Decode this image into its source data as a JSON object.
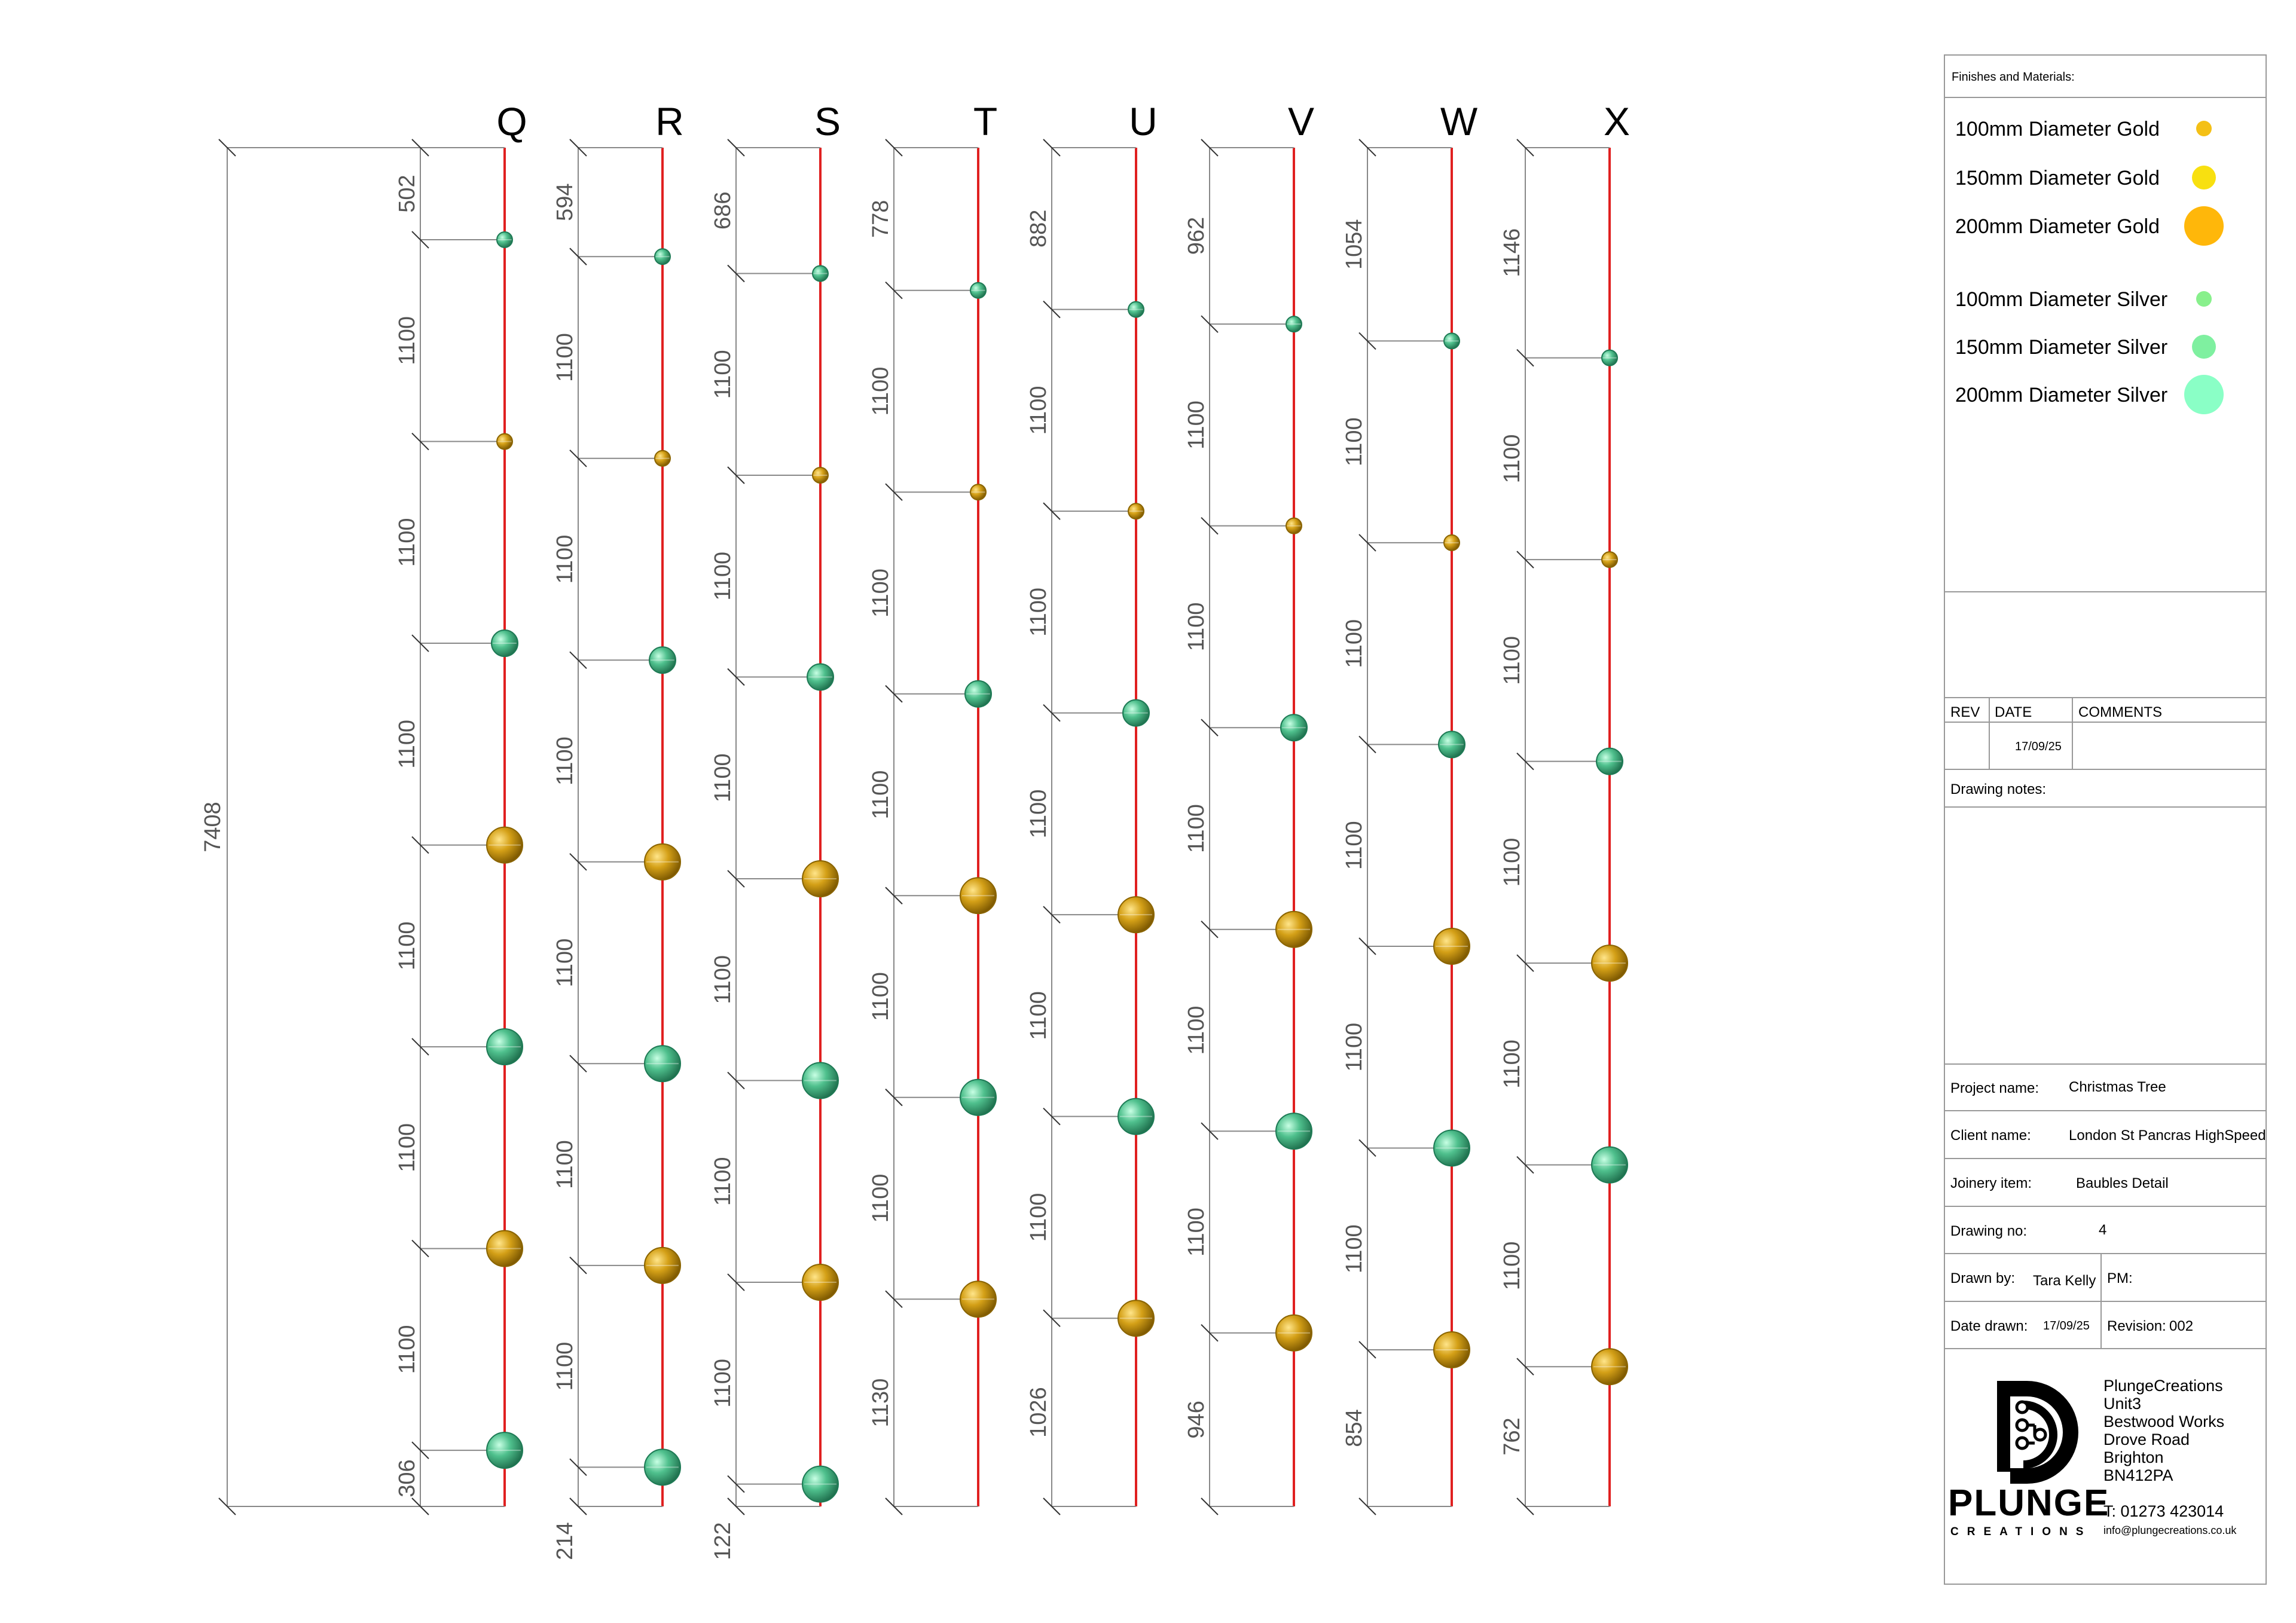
{
  "drawing": {
    "overall_height": "7408",
    "columns": [
      {
        "letter": "Q",
        "top": "502",
        "bottom": "306",
        "bottom_side": "left",
        "spacings": [
          "1100",
          "1100",
          "1100",
          "1100",
          "1100",
          "1100"
        ],
        "baubles": [
          {
            "material": "silver",
            "size": 100
          },
          {
            "material": "gold",
            "size": 100
          },
          {
            "material": "silver",
            "size": 150
          },
          {
            "material": "gold",
            "size": 200
          },
          {
            "material": "silver",
            "size": 200
          },
          {
            "material": "gold",
            "size": 200
          },
          {
            "material": "silver",
            "size": 200
          }
        ]
      },
      {
        "letter": "R",
        "top": "594",
        "bottom": "214",
        "bottom_side": "below",
        "spacings": [
          "1100",
          "1100",
          "1100",
          "1100",
          "1100",
          "1100"
        ],
        "baubles": [
          {
            "material": "silver",
            "size": 100
          },
          {
            "material": "gold",
            "size": 100
          },
          {
            "material": "silver",
            "size": 150
          },
          {
            "material": "gold",
            "size": 200
          },
          {
            "material": "silver",
            "size": 200
          },
          {
            "material": "gold",
            "size": 200
          },
          {
            "material": "silver",
            "size": 200
          }
        ]
      },
      {
        "letter": "S",
        "top": "686",
        "bottom": "122",
        "bottom_side": "below",
        "spacings": [
          "1100",
          "1100",
          "1100",
          "1100",
          "1100",
          "1100"
        ],
        "baubles": [
          {
            "material": "silver",
            "size": 100
          },
          {
            "material": "gold",
            "size": 100
          },
          {
            "material": "silver",
            "size": 150
          },
          {
            "material": "gold",
            "size": 200
          },
          {
            "material": "silver",
            "size": 200
          },
          {
            "material": "gold",
            "size": 200
          },
          {
            "material": "silver",
            "size": 200
          }
        ]
      },
      {
        "letter": "T",
        "top": "778",
        "bottom": "1130",
        "bottom_side": "left",
        "spacings": [
          "1100",
          "1100",
          "1100",
          "1100",
          "1100"
        ],
        "baubles": [
          {
            "material": "silver",
            "size": 100
          },
          {
            "material": "gold",
            "size": 100
          },
          {
            "material": "silver",
            "size": 150
          },
          {
            "material": "gold",
            "size": 200
          },
          {
            "material": "silver",
            "size": 200
          },
          {
            "material": "gold",
            "size": 200
          }
        ]
      },
      {
        "letter": "U",
        "top": "882",
        "bottom": "1026",
        "bottom_side": "left",
        "spacings": [
          "1100",
          "1100",
          "1100",
          "1100",
          "1100"
        ],
        "baubles": [
          {
            "material": "silver",
            "size": 100
          },
          {
            "material": "gold",
            "size": 100
          },
          {
            "material": "silver",
            "size": 150
          },
          {
            "material": "gold",
            "size": 200
          },
          {
            "material": "silver",
            "size": 200
          },
          {
            "material": "gold",
            "size": 200
          }
        ]
      },
      {
        "letter": "V",
        "top": "962",
        "bottom": "946",
        "bottom_side": "left",
        "spacings": [
          "1100",
          "1100",
          "1100",
          "1100",
          "1100"
        ],
        "baubles": [
          {
            "material": "silver",
            "size": 100
          },
          {
            "material": "gold",
            "size": 100
          },
          {
            "material": "silver",
            "size": 150
          },
          {
            "material": "gold",
            "size": 200
          },
          {
            "material": "silver",
            "size": 200
          },
          {
            "material": "gold",
            "size": 200
          }
        ]
      },
      {
        "letter": "W",
        "top": "1054",
        "bottom": "854",
        "bottom_side": "left",
        "spacings": [
          "1100",
          "1100",
          "1100",
          "1100",
          "1100"
        ],
        "baubles": [
          {
            "material": "silver",
            "size": 100
          },
          {
            "material": "gold",
            "size": 100
          },
          {
            "material": "silver",
            "size": 150
          },
          {
            "material": "gold",
            "size": 200
          },
          {
            "material": "silver",
            "size": 200
          },
          {
            "material": "gold",
            "size": 200
          }
        ]
      },
      {
        "letter": "X",
        "top": "1146",
        "bottom": "762",
        "bottom_side": "left",
        "spacings": [
          "1100",
          "1100",
          "1100",
          "1100",
          "1100"
        ],
        "baubles": [
          {
            "material": "silver",
            "size": 100
          },
          {
            "material": "gold",
            "size": 100
          },
          {
            "material": "silver",
            "size": 150
          },
          {
            "material": "gold",
            "size": 200
          },
          {
            "material": "silver",
            "size": 200
          },
          {
            "material": "gold",
            "size": 200
          }
        ]
      }
    ],
    "colors": {
      "rod": "#e02020",
      "gold": "#d4a017",
      "gold_dark": "#8a6400",
      "silver": "#4fc08d",
      "silver_dark": "#1e7a55",
      "dim_line": "#888888"
    }
  },
  "title_block": {
    "legend_title": "Finishes and Materials:",
    "legend": [
      {
        "label": "100mm Diameter Gold",
        "color": "#f4c016",
        "size": 100
      },
      {
        "label": "150mm Diameter Gold",
        "color": "#f8e010",
        "size": 150
      },
      {
        "label": "200mm Diameter Gold",
        "color": "#ffb70a",
        "size": 200
      },
      {
        "label": "100mm Diameter Silver",
        "color": "#88f08c",
        "size": 100
      },
      {
        "label": "150mm Diameter Silver",
        "color": "#7ff0a0",
        "size": 150
      },
      {
        "label": "200mm Diameter Silver",
        "color": "#8affc6",
        "size": 200
      }
    ],
    "rev_header": "REV",
    "date_header": "DATE",
    "comments_header": "COMMENTS",
    "rev_value": "",
    "date_value": "17/09/25",
    "comments_value": "",
    "drawing_notes_label": "Drawing notes:",
    "project_label": "Project name:",
    "project_value": "Christmas Tree",
    "client_label": "Client name:",
    "client_value": "London St Pancras HighSpeed",
    "joinery_label": "Joinery item:",
    "joinery_value": "Baubles Detail",
    "drawing_no_label": "Drawing no:",
    "drawing_no_value": "4",
    "drawn_by_label": "Drawn by:",
    "drawn_by_value": "Tara Kelly",
    "pm_label": "PM:",
    "date_drawn_label": "Date drawn:",
    "date_drawn_value": "17/09/25",
    "revision_label": "Revision:",
    "revision_value": "002",
    "company": {
      "logo_text": "PLUNGE",
      "logo_sub": "CREATIONS",
      "address": [
        "PlungeCreations",
        "Unit3",
        "Bestwood Works",
        "Drove Road",
        "Brighton",
        "BN412PA"
      ],
      "phone": "T: 01273 423014",
      "email": "info@plungecreations.co.uk"
    }
  }
}
